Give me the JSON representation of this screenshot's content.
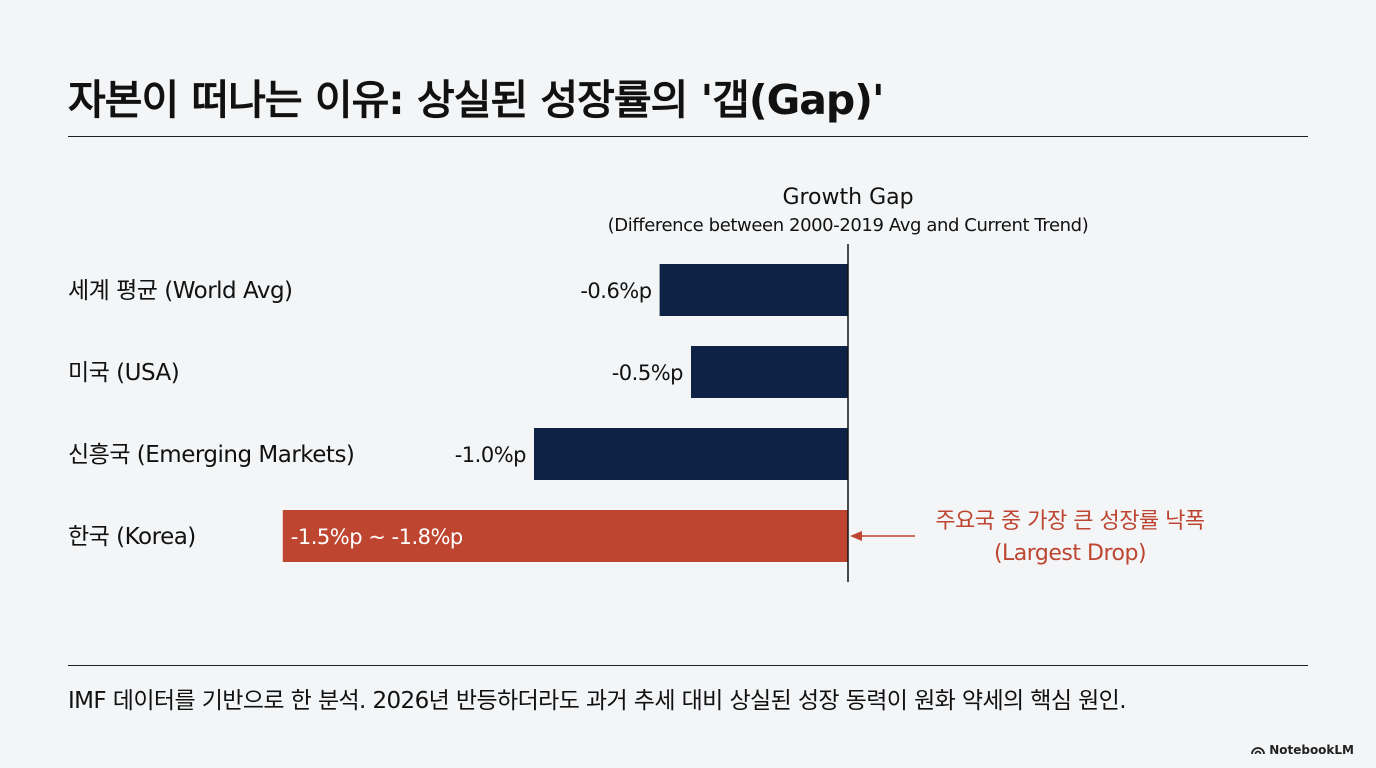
{
  "title": "자본이 떠나는 이유: 상실된 성장률의 '갭(Gap)'",
  "footer": "IMF 데이터를 기반으로 한 분석. 2026년 반등하더라도 과거 추세 대비 상실된 성장 동력이 원화 약세의 핵심 원인.",
  "brand": "NotebookLM",
  "colors": {
    "bar": "#0d2244",
    "highlight": "#be4530",
    "text": "#111111"
  },
  "chart_data": {
    "type": "bar",
    "orientation": "horizontal",
    "title": "Growth Gap",
    "subtitle": "(Difference between 2000-2019 Avg and Current Trend)",
    "categories": [
      "세계 평균 (World Avg)",
      "미국 (USA)",
      "신흥국 (Emerging Markets)",
      "한국 (Korea)"
    ],
    "values": [
      -0.6,
      -0.5,
      -1.0,
      -1.5
    ],
    "range_high": [
      null,
      null,
      null,
      -1.8
    ],
    "value_labels": [
      "-0.6%p",
      "-0.5%p",
      "-1.0%p",
      "-1.5%p ~ -1.8%p"
    ],
    "highlight_index": 3,
    "annotation": {
      "line1": "주요국 중 가장 큰 성장률 낙폭",
      "line2": "(Largest Drop)"
    },
    "xlim": [
      -2.0,
      0
    ]
  }
}
